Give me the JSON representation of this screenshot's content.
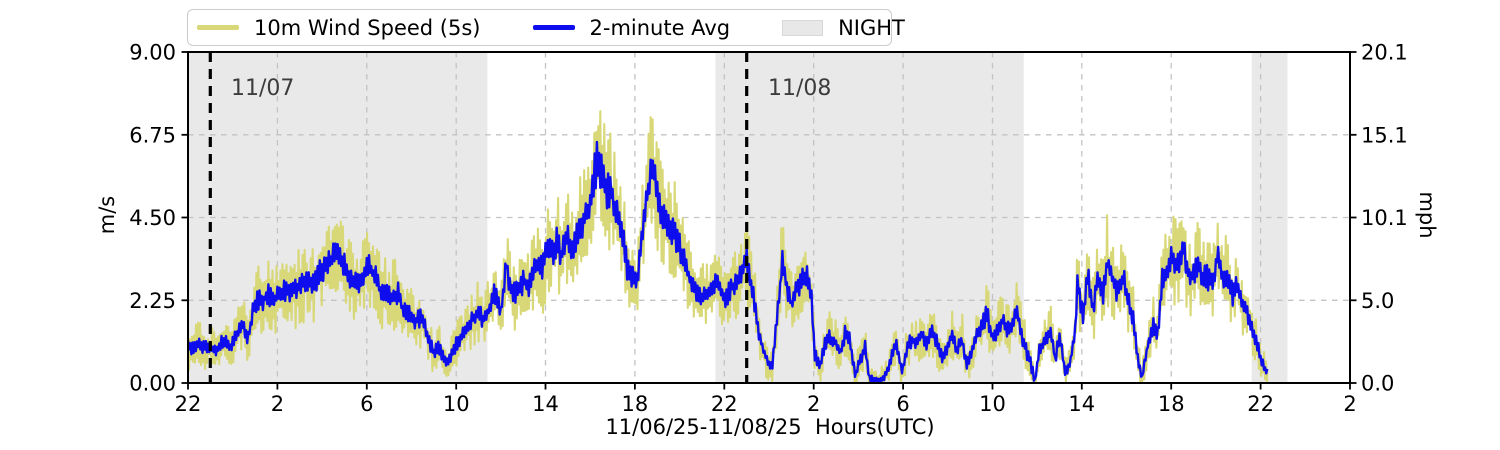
{
  "chart_data": {
    "type": "line",
    "xlabel": "11/06/25-11/08/25  Hours(UTC)",
    "ylabel_left": "m/s",
    "ylabel_right": "mph",
    "night_label": "NIGHT",
    "x_axis": {
      "span_hours": 52,
      "tick_hours": [
        0,
        4,
        8,
        12,
        16,
        20,
        24,
        28,
        32,
        36,
        40,
        44,
        48,
        52
      ],
      "tick_labels": [
        "22",
        "2",
        "6",
        "10",
        "14",
        "18",
        "22",
        "2",
        "6",
        "10",
        "14",
        "18",
        "22",
        "2"
      ]
    },
    "y_axis_left": {
      "max": 9,
      "tick_values": [
        0,
        2.25,
        4.5,
        6.75,
        9
      ],
      "tick_labels": [
        "0.00",
        "2.25",
        "4.50",
        "6.75",
        "9.00"
      ]
    },
    "y_axis_right": {
      "tick_labels": [
        "0.0",
        "5.0",
        "10.1",
        "15.1",
        "20.1"
      ]
    },
    "night_spans_hours": [
      [
        0,
        13.4
      ],
      [
        23.6,
        37.4
      ],
      [
        47.6,
        49.2
      ]
    ],
    "date_lines": [
      {
        "label": "11/07",
        "hour": 1.0
      },
      {
        "label": "11/08",
        "hour": 25.0
      }
    ],
    "data_end_hour": 48.3,
    "colors": {
      "night_fill": "#e9e9e9",
      "night_legend": "#e8e8e8",
      "grid": "#c3c3c3",
      "frame": "#000000",
      "date_line": "#000000",
      "annotation_text": "#3c3c3c"
    },
    "series": [
      {
        "name": "10m Wind Speed (5s)",
        "color": "#d8d878",
        "role": "raw-5s-samples",
        "envelope": {
          "base": 0.35,
          "per_ms": 0.24
        }
      },
      {
        "name": "2-minute Avg",
        "color": "#0d0dee",
        "role": "two-minute-average",
        "jitter": {
          "base": 0.12,
          "per_ms": 0.07
        },
        "points": [
          [
            0,
            1.05
          ],
          [
            0.25,
            0.9
          ],
          [
            0.5,
            1.1
          ],
          [
            0.75,
            0.95
          ],
          [
            1,
            1
          ],
          [
            1.3,
            0.9
          ],
          [
            1.6,
            1.15
          ],
          [
            1.9,
            1
          ],
          [
            2.2,
            1.35
          ],
          [
            2.45,
            1.6
          ],
          [
            2.7,
            1.2
          ],
          [
            2.9,
            2
          ],
          [
            3.1,
            2.3
          ],
          [
            3.35,
            2.2
          ],
          [
            3.6,
            2.45
          ],
          [
            3.8,
            2.25
          ],
          [
            4,
            2.35
          ],
          [
            4.3,
            2.55
          ],
          [
            4.5,
            2.45
          ],
          [
            4.7,
            2.6
          ],
          [
            4.9,
            2.55
          ],
          [
            5.1,
            2.7
          ],
          [
            5.35,
            2.8
          ],
          [
            5.6,
            2.7
          ],
          [
            5.8,
            2.9
          ],
          [
            6,
            3.1
          ],
          [
            6.3,
            3.3
          ],
          [
            6.5,
            3.45
          ],
          [
            6.7,
            3.6
          ],
          [
            6.9,
            3.3
          ],
          [
            7.15,
            2.9
          ],
          [
            7.4,
            2.8
          ],
          [
            7.6,
            2.7
          ],
          [
            7.8,
            2.9
          ],
          [
            8,
            3.15
          ],
          [
            8.25,
            3.05
          ],
          [
            8.5,
            2.7
          ],
          [
            8.7,
            2.45
          ],
          [
            9,
            2.35
          ],
          [
            9.2,
            2.3
          ],
          [
            9.4,
            2.45
          ],
          [
            9.6,
            2
          ],
          [
            9.9,
            1.9
          ],
          [
            10.15,
            1.7
          ],
          [
            10.4,
            1.8
          ],
          [
            10.6,
            1.55
          ],
          [
            10.8,
            1.15
          ],
          [
            11,
            0.8
          ],
          [
            11.2,
            1
          ],
          [
            11.4,
            0.7
          ],
          [
            11.6,
            0.55
          ],
          [
            11.9,
            0.9
          ],
          [
            12.1,
            1.15
          ],
          [
            12.3,
            1.35
          ],
          [
            12.6,
            1.6
          ],
          [
            12.9,
            1.9
          ],
          [
            13.2,
            1.75
          ],
          [
            13.5,
            2.05
          ],
          [
            13.7,
            2.45
          ],
          [
            14,
            1.9
          ],
          [
            14.25,
            3.2
          ],
          [
            14.5,
            2.4
          ],
          [
            14.7,
            2.45
          ],
          [
            15,
            2.8
          ],
          [
            15.2,
            2.6
          ],
          [
            15.45,
            3.05
          ],
          [
            15.65,
            3.35
          ],
          [
            15.85,
            3.15
          ],
          [
            16.1,
            3.7
          ],
          [
            16.3,
            3.5
          ],
          [
            16.5,
            3.9
          ],
          [
            16.7,
            3.45
          ],
          [
            16.95,
            4.05
          ],
          [
            17.2,
            3.6
          ],
          [
            17.4,
            3.95
          ],
          [
            17.6,
            4.25
          ],
          [
            17.85,
            4.6
          ],
          [
            18.1,
            5.35
          ],
          [
            18.3,
            6.1
          ],
          [
            18.5,
            5.85
          ],
          [
            18.75,
            5.25
          ],
          [
            18.95,
            5.15
          ],
          [
            19.2,
            4.7
          ],
          [
            19.4,
            4.15
          ],
          [
            19.65,
            3.15
          ],
          [
            19.85,
            2.9
          ],
          [
            20.1,
            2.8
          ],
          [
            20.3,
            3.9
          ],
          [
            20.55,
            5.15
          ],
          [
            20.75,
            5.95
          ],
          [
            21,
            5.25
          ],
          [
            21.2,
            4.6
          ],
          [
            21.4,
            4.4
          ],
          [
            21.65,
            4.15
          ],
          [
            21.9,
            3.95
          ],
          [
            22.1,
            3.5
          ],
          [
            22.35,
            3.05
          ],
          [
            22.55,
            2.6
          ],
          [
            22.8,
            2.45
          ],
          [
            23,
            2.35
          ],
          [
            23.2,
            2.45
          ],
          [
            23.45,
            2.6
          ],
          [
            23.65,
            2.8
          ],
          [
            23.9,
            2.45
          ],
          [
            24.1,
            2.35
          ],
          [
            24.35,
            2.6
          ],
          [
            24.6,
            2.8
          ],
          [
            24.8,
            3
          ],
          [
            25,
            3.3
          ],
          [
            25.3,
            2.4
          ],
          [
            25.55,
            1.35
          ],
          [
            25.9,
            0.6
          ],
          [
            26.15,
            0.45
          ],
          [
            26.6,
            3.3
          ],
          [
            26.8,
            2.65
          ],
          [
            27,
            2.1
          ],
          [
            27.25,
            2.55
          ],
          [
            27.5,
            2.75
          ],
          [
            27.7,
            2.9
          ],
          [
            27.9,
            2.3
          ],
          [
            28.05,
            0.75
          ],
          [
            28.3,
            0.45
          ],
          [
            28.5,
            1.1
          ],
          [
            28.7,
            1.25
          ],
          [
            28.95,
            1.1
          ],
          [
            29.2,
            0.8
          ],
          [
            29.4,
            1.35
          ],
          [
            29.6,
            1.2
          ],
          [
            29.85,
            0.2
          ],
          [
            30.1,
            0.65
          ],
          [
            30.3,
            1
          ],
          [
            30.5,
            0.1
          ],
          [
            30.75,
            0.05
          ],
          [
            31,
            0.05
          ],
          [
            31.3,
            0.3
          ],
          [
            31.5,
            0.75
          ],
          [
            31.7,
            1.1
          ],
          [
            31.95,
            0.3
          ],
          [
            32.2,
            1
          ],
          [
            32.4,
            1.2
          ],
          [
            32.6,
            1.1
          ],
          [
            32.85,
            1.35
          ],
          [
            33.05,
            1.1
          ],
          [
            33.3,
            1.45
          ],
          [
            33.5,
            1.1
          ],
          [
            33.75,
            0.65
          ],
          [
            33.95,
            0.9
          ],
          [
            34.2,
            1.35
          ],
          [
            34.4,
            0.9
          ],
          [
            34.65,
            1.2
          ],
          [
            34.85,
            0.45
          ],
          [
            35.1,
            0.9
          ],
          [
            35.3,
            1.35
          ],
          [
            35.55,
            1.55
          ],
          [
            35.75,
            1.9
          ],
          [
            36,
            1.2
          ],
          [
            36.2,
            1.35
          ],
          [
            36.45,
            1.7
          ],
          [
            36.65,
            1.45
          ],
          [
            36.9,
            1.6
          ],
          [
            37.1,
            2
          ],
          [
            37.35,
            1.2
          ],
          [
            37.7,
            0.55
          ],
          [
            37.9,
            0.05
          ],
          [
            38.1,
            0.85
          ],
          [
            38.35,
            1.2
          ],
          [
            38.6,
            1.45
          ],
          [
            38.8,
            0.65
          ],
          [
            39,
            1.3
          ],
          [
            39.25,
            0.3
          ],
          [
            39.45,
            0.5
          ],
          [
            39.7,
            1.45
          ],
          [
            39.8,
            2.75
          ],
          [
            40.05,
            1.75
          ],
          [
            40.25,
            2.9
          ],
          [
            40.5,
            2
          ],
          [
            40.7,
            2.85
          ],
          [
            40.95,
            2.4
          ],
          [
            41.15,
            3.4
          ],
          [
            41.4,
            2.85
          ],
          [
            41.6,
            2.5
          ],
          [
            41.85,
            2.9
          ],
          [
            42.05,
            2.3
          ],
          [
            42.3,
            1.75
          ],
          [
            42.5,
            0.65
          ],
          [
            42.7,
            0.15
          ],
          [
            42.95,
            1.05
          ],
          [
            43.2,
            1.55
          ],
          [
            43.4,
            1.3
          ],
          [
            43.6,
            2.85
          ],
          [
            43.85,
            3
          ],
          [
            44.05,
            3.45
          ],
          [
            44.3,
            3.2
          ],
          [
            44.5,
            3.75
          ],
          [
            44.75,
            3
          ],
          [
            44.95,
            2.85
          ],
          [
            45.2,
            3.3
          ],
          [
            45.4,
            2.85
          ],
          [
            45.6,
            2.9
          ],
          [
            45.85,
            2.65
          ],
          [
            46.1,
            3.65
          ],
          [
            46.3,
            2.9
          ],
          [
            46.5,
            2.85
          ],
          [
            46.75,
            2.4
          ],
          [
            46.95,
            2.65
          ],
          [
            47.2,
            2.1
          ],
          [
            47.4,
            1.95
          ],
          [
            47.65,
            1.45
          ],
          [
            47.85,
            1.05
          ],
          [
            48.05,
            0.55
          ],
          [
            48.3,
            0.25
          ]
        ]
      }
    ]
  }
}
